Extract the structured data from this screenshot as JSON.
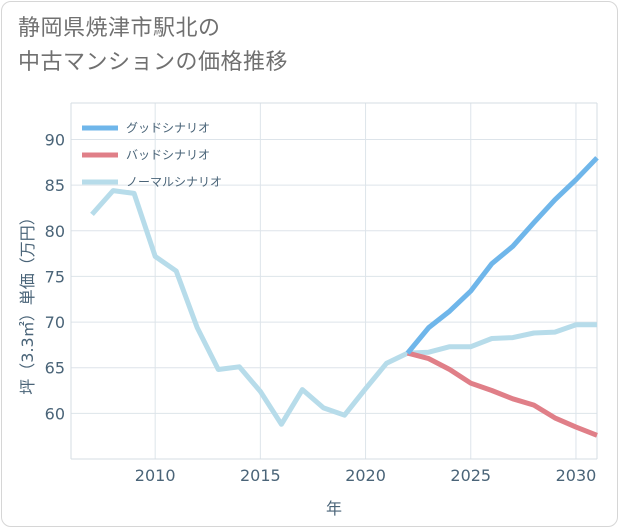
{
  "page": {
    "title_line1": "静岡県焼津市駅北の",
    "title_line2": "中古マンションの価格推移"
  },
  "chart_data": {
    "type": "line",
    "xlabel": "年",
    "ylabel": "坪（3.3㎡）単価（万円）",
    "xlim": [
      2006,
      2031
    ],
    "ylim": [
      55,
      94
    ],
    "xticks": [
      2010,
      2015,
      2020,
      2025,
      2030
    ],
    "yticks": [
      60,
      65,
      70,
      75,
      80,
      85,
      90
    ],
    "grid": true,
    "legend_position": "top-left",
    "series": [
      {
        "name": "グッドシナリオ",
        "color": "#6fb6ea",
        "x": [
          2022,
          2023,
          2024,
          2025,
          2026,
          2027,
          2028,
          2029,
          2030,
          2031
        ],
        "y": [
          66.6,
          69.4,
          71.2,
          73.4,
          76.4,
          78.3,
          80.9,
          83.4,
          85.6,
          88.0
        ]
      },
      {
        "name": "バッドシナリオ",
        "color": "#e07f88",
        "x": [
          2022,
          2023,
          2024,
          2025,
          2026,
          2027,
          2028,
          2029,
          2030,
          2031
        ],
        "y": [
          66.6,
          66.0,
          64.8,
          63.3,
          62.5,
          61.6,
          60.9,
          59.5,
          58.5,
          57.6
        ]
      },
      {
        "name": "ノーマルシナリオ",
        "color": "#b7dcea",
        "x": [
          2007,
          2008,
          2009,
          2010,
          2011,
          2012,
          2013,
          2014,
          2015,
          2016,
          2017,
          2018,
          2019,
          2020,
          2021,
          2022,
          2023,
          2024,
          2025,
          2026,
          2027,
          2028,
          2029,
          2030,
          2031
        ],
        "y": [
          81.8,
          84.4,
          84.1,
          77.2,
          75.6,
          69.4,
          64.8,
          65.1,
          62.4,
          58.8,
          62.6,
          60.6,
          59.8,
          62.7,
          65.5,
          66.6,
          66.7,
          67.3,
          67.3,
          68.2,
          68.3,
          68.8,
          68.9,
          69.7,
          69.7
        ]
      }
    ]
  }
}
